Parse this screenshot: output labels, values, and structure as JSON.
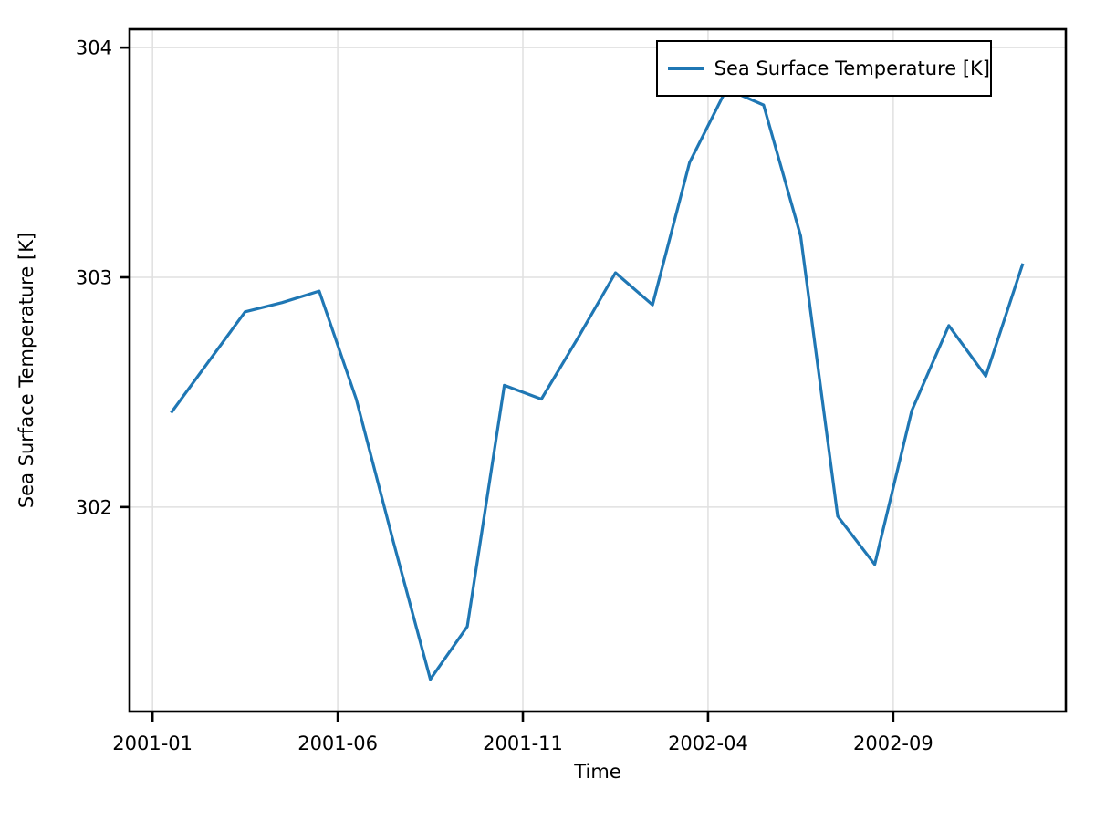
{
  "chart_data": {
    "type": "line",
    "title": "",
    "xlabel": "Time",
    "ylabel": "Sea Surface Temperature [K]",
    "x": [
      "2001-01",
      "2001-02",
      "2001-03",
      "2001-04",
      "2001-05",
      "2001-06",
      "2001-07",
      "2001-08",
      "2001-09",
      "2001-10",
      "2001-11",
      "2001-12",
      "2002-01",
      "2002-02",
      "2002-03",
      "2002-04",
      "2002-05",
      "2002-06",
      "2002-07",
      "2002-08",
      "2002-09",
      "2002-10",
      "2002-11",
      "2002-12"
    ],
    "series": [
      {
        "name": "Sea Surface Temperature [K]",
        "color": "#1f77b4",
        "values": [
          302.41,
          302.63,
          302.85,
          302.89,
          302.94,
          302.47,
          301.85,
          301.25,
          301.48,
          302.53,
          302.47,
          302.74,
          303.02,
          302.88,
          303.5,
          303.82,
          303.75,
          303.18,
          301.96,
          301.75,
          302.42,
          302.79,
          302.57,
          303.06
        ]
      }
    ],
    "xticks": [
      "2001-01",
      "2001-06",
      "2001-11",
      "2002-04",
      "2002-09"
    ],
    "yticks": [
      302,
      303,
      304
    ],
    "ylim": [
      301.11,
      304.08
    ],
    "grid": true,
    "grid_color": "#e0e0e0",
    "axis_color": "#000000",
    "legend": {
      "label": "Sea Surface Temperature [K]",
      "position": "upper right"
    }
  }
}
